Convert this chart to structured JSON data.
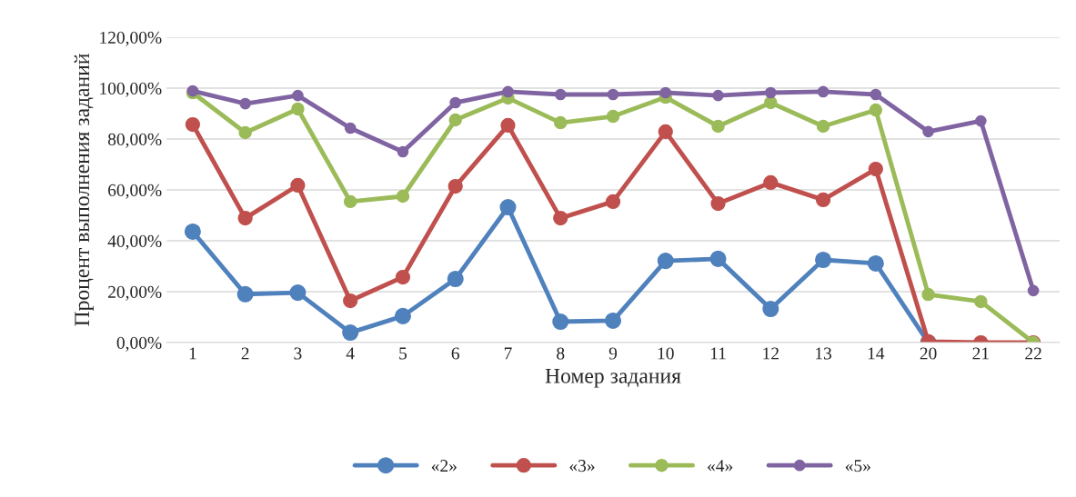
{
  "chart_data": {
    "type": "line",
    "xlabel": "Номер задания",
    "ylabel": "Процент выполнения заданий",
    "categories": [
      "1",
      "2",
      "3",
      "4",
      "5",
      "6",
      "7",
      "8",
      "9",
      "10",
      "11",
      "12",
      "13",
      "14",
      "20",
      "21",
      "22"
    ],
    "series": [
      {
        "name": "«2»",
        "color": "#4f81bd",
        "values": [
          43.6,
          19.0,
          19.6,
          3.9,
          10.4,
          25.0,
          53.2,
          8.2,
          8.6,
          32.1,
          32.9,
          13.2,
          32.5,
          31.1,
          0,
          null,
          null
        ]
      },
      {
        "name": "«3»",
        "color": "#c0504d",
        "values": [
          85.7,
          48.9,
          61.8,
          16.4,
          25.7,
          61.4,
          85.4,
          48.9,
          55.4,
          82.9,
          54.6,
          62.9,
          56.1,
          68.2,
          0.4,
          0,
          0
        ]
      },
      {
        "name": "«4»",
        "color": "#9bbb59",
        "values": [
          98.2,
          82.5,
          91.8,
          55.4,
          57.5,
          87.5,
          96.1,
          86.4,
          88.9,
          96.4,
          85.0,
          94.3,
          85.0,
          91.4,
          18.9,
          16.1,
          0
        ]
      },
      {
        "name": "«5»",
        "color": "#8064a2",
        "values": [
          98.9,
          93.9,
          97.1,
          84.3,
          75.0,
          94.3,
          98.6,
          97.5,
          97.5,
          98.2,
          97.1,
          98.2,
          98.6,
          97.5,
          82.9,
          87.1,
          20.4
        ]
      }
    ],
    "ylim": [
      0,
      120
    ],
    "yticks": [
      {
        "value": 0,
        "label": "0,00%"
      },
      {
        "value": 20,
        "label": "20,00%"
      },
      {
        "value": 40,
        "label": "40,00%"
      },
      {
        "value": 60,
        "label": "60,00%"
      },
      {
        "value": 80,
        "label": "80,00%"
      },
      {
        "value": 100,
        "label": "100,00%"
      },
      {
        "value": 120,
        "label": "120,00%"
      }
    ],
    "grid": "y",
    "legend": "bottom",
    "marker": "circle",
    "line_style": "solid"
  }
}
